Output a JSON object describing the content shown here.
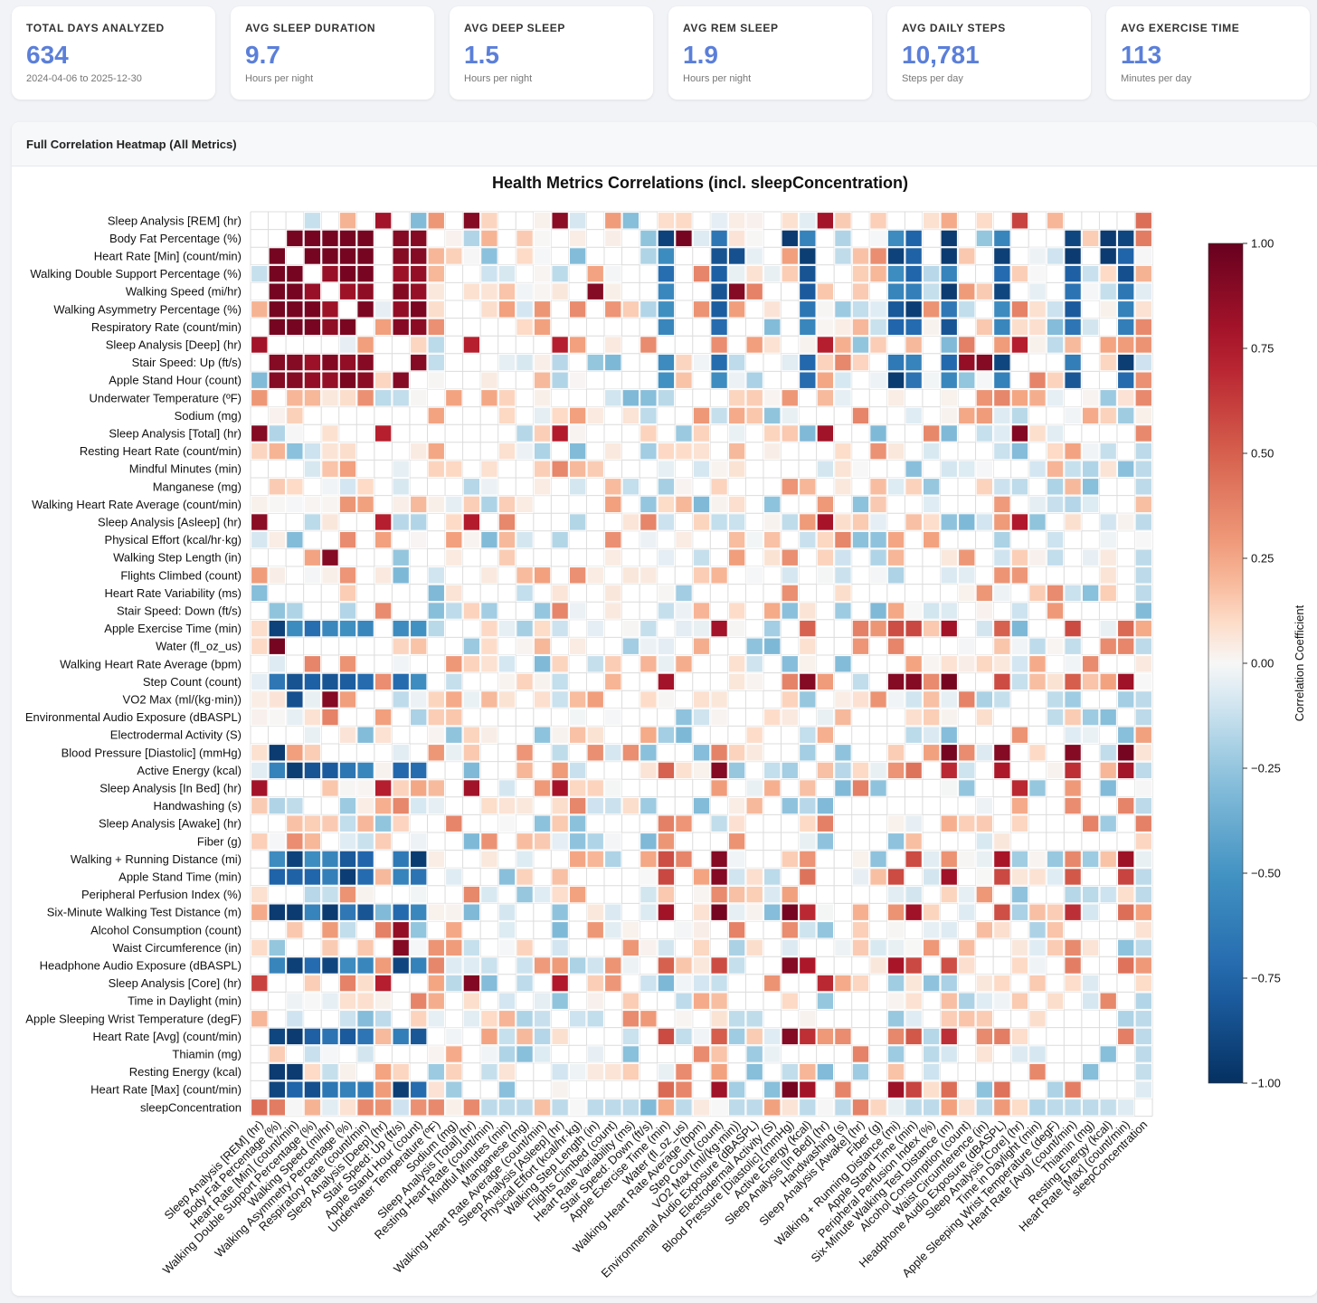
{
  "cards": [
    {
      "title": "TOTAL DAYS ANALYZED",
      "value": "634",
      "sub": "2024-04-06 to 2025-12-30"
    },
    {
      "title": "AVG SLEEP DURATION",
      "value": "9.7",
      "sub": "Hours per night"
    },
    {
      "title": "AVG DEEP SLEEP",
      "value": "1.5",
      "sub": "Hours per night"
    },
    {
      "title": "AVG REM SLEEP",
      "value": "1.9",
      "sub": "Hours per night"
    },
    {
      "title": "AVG DAILY STEPS",
      "value": "10,781",
      "sub": "Steps per day"
    },
    {
      "title": "AVG EXERCISE TIME",
      "value": "113",
      "sub": "Minutes per day"
    }
  ],
  "panel": {
    "title": "Full Correlation Heatmap (All Metrics)"
  },
  "chart_data": {
    "type": "heatmap",
    "title": "Health Metrics Correlations (incl. sleepConcentration)",
    "labels": [
      "Sleep Analysis [REM] (hr)",
      "Body Fat Percentage (%)",
      "Heart Rate [Min] (count/min)",
      "Walking Double Support Percentage (%)",
      "Walking Speed (mi/hr)",
      "Walking Asymmetry Percentage (%)",
      "Respiratory Rate (count/min)",
      "Sleep Analysis [Deep] (hr)",
      "Stair Speed: Up (ft/s)",
      "Apple Stand Hour (count)",
      "Underwater Temperature (ºF)",
      "Sodium (mg)",
      "Sleep Analysis [Total] (hr)",
      "Resting Heart Rate (count/min)",
      "Mindful Minutes (min)",
      "Manganese (mg)",
      "Walking Heart Rate Average (count/min)",
      "Sleep Analysis [Asleep] (hr)",
      "Physical Effort (kcal/hr·kg)",
      "Walking Step Length (in)",
      "Flights Climbed (count)",
      "Heart Rate Variability (ms)",
      "Stair Speed: Down (ft/s)",
      "Apple Exercise Time (min)",
      "Water (fl_oz_us)",
      "Walking Heart Rate Average (bpm)",
      "Step Count (count)",
      "VO2 Max (ml/(kg·min))",
      "Environmental Audio Exposure (dBASPL)",
      "Electrodermal Activity (S)",
      "Blood Pressure [Diastolic] (mmHg)",
      "Active Energy (kcal)",
      "Sleep Analysis [In Bed] (hr)",
      "Handwashing (s)",
      "Sleep Analysis [Awake] (hr)",
      "Fiber (g)",
      "Walking + Running Distance (mi)",
      "Apple Stand Time (min)",
      "Peripheral Perfusion Index (%)",
      "Six-Minute Walking Test Distance (m)",
      "Alcohol Consumption (count)",
      "Waist Circumference (in)",
      "Headphone Audio Exposure (dBASPL)",
      "Sleep Analysis [Core] (hr)",
      "Time in Daylight (min)",
      "Apple Sleeping Wrist Temperature (degF)",
      "Heart Rate [Avg] (count/min)",
      "Thiamin (mg)",
      "Resting Energy (kcal)",
      "Heart Rate [Max] (count/min)",
      "sleepConcentration"
    ],
    "colorbar": {
      "label": "Correlation Coefficient",
      "min": -1.0,
      "max": 1.0,
      "ticks": [
        "1.00",
        "0.75",
        "0.50",
        "0.25",
        "0.00",
        "−0.25",
        "−0.50",
        "−0.75",
        "−1.00"
      ],
      "tick_values": [
        1.0,
        0.75,
        0.5,
        0.25,
        0.0,
        -0.25,
        -0.5,
        -0.75,
        -1.0
      ],
      "colormap": "RdBu_r"
    },
    "estimated_values": {
      "Sleep Analysis [REM] (hr)": {
        "Sleep Analysis [Deep] (hr)": 0.8,
        "Sleep Analysis [Total] (hr)": 0.9,
        "Sleep Analysis [Asleep] (hr)": 0.88,
        "Sleep Analysis [In Bed] (hr)": 0.8,
        "Sleep Analysis [Core] (hr)": 0.6,
        "sleepConcentration": 0.45,
        "Underwater Temperature (ºF)": 0.3
      },
      "Body Fat Percentage (%)": {
        "Heart Rate [Min] (count/min)": 0.95,
        "Walking Double Support Percentage (%)": 0.95,
        "Walking Speed (mi/hr)": 0.95,
        "Walking Asymmetry Percentage (%)": 0.95,
        "Respiratory Rate (count/min)": 0.95,
        "Stair Speed: Up (ft/s)": 0.9,
        "Apple Stand Hour (count)": 0.9,
        "Water (fl_oz_us)": 0.95,
        "Six-Minute Walking Test Distance (m)": -0.95,
        "Heart Rate [Avg] (count/min)": -0.9,
        "Resting Energy (kcal)": -0.95,
        "Heart Rate [Max] (count/min)": -0.9,
        "sleepConcentration": 0.4
      },
      "Heart Rate [Min] (count/min)": {
        "Walking Double Support Percentage (%)": 0.95,
        "Walking Speed (mi/hr)": 0.95,
        "Walking Asymmetry Percentage (%)": 0.95,
        "Respiratory Rate (count/min)": 0.95,
        "Stair Speed: Up (ft/s)": 0.9,
        "Apple Stand Hour (count)": 0.9,
        "VO2 Max (ml/(kg·min))": -0.85,
        "Six-Minute Walking Test Distance (m)": -0.95,
        "Heart Rate [Avg] (count/min)": -0.95,
        "Resting Energy (kcal)": -0.95
      },
      "Walking Speed (mi/hr)": {
        "Walking Step Length (in)": 0.9,
        "VO2 Max (ml/(kg·min))": 0.9,
        "Six-Minute Walking Test Distance (m)": -0.95,
        "Headphone Audio Exposure (dBASPL)": -0.9
      },
      "Stair Speed: Up (ft/s)": {
        "Apple Stand Hour (count)": 0.9,
        "Alcohol Consumption (count)": 0.85,
        "Waist Circumference (in)": 0.9,
        "Headphone Audio Exposure (dBASPL)": -0.9
      },
      "Step Count (count)": {
        "Walking + Running Distance (mi)": 0.9,
        "Apple Stand Time (min)": 0.9,
        "Six-Minute Walking Test Distance (m)": 0.95,
        "Active Energy (kcal)": 0.9,
        "Apple Exercise Time (min)": 0.8
      },
      "Blood Pressure [Diastolic] (mmHg)": {
        "Six-Minute Walking Test Distance (m)": 0.95,
        "Headphone Audio Exposure (dBASPL)": 0.9,
        "Heart Rate [Avg] (count/min)": 0.9,
        "Heart Rate [Max] (count/min)": 0.95,
        "Body Fat Percentage (%)": -0.95
      }
    }
  }
}
